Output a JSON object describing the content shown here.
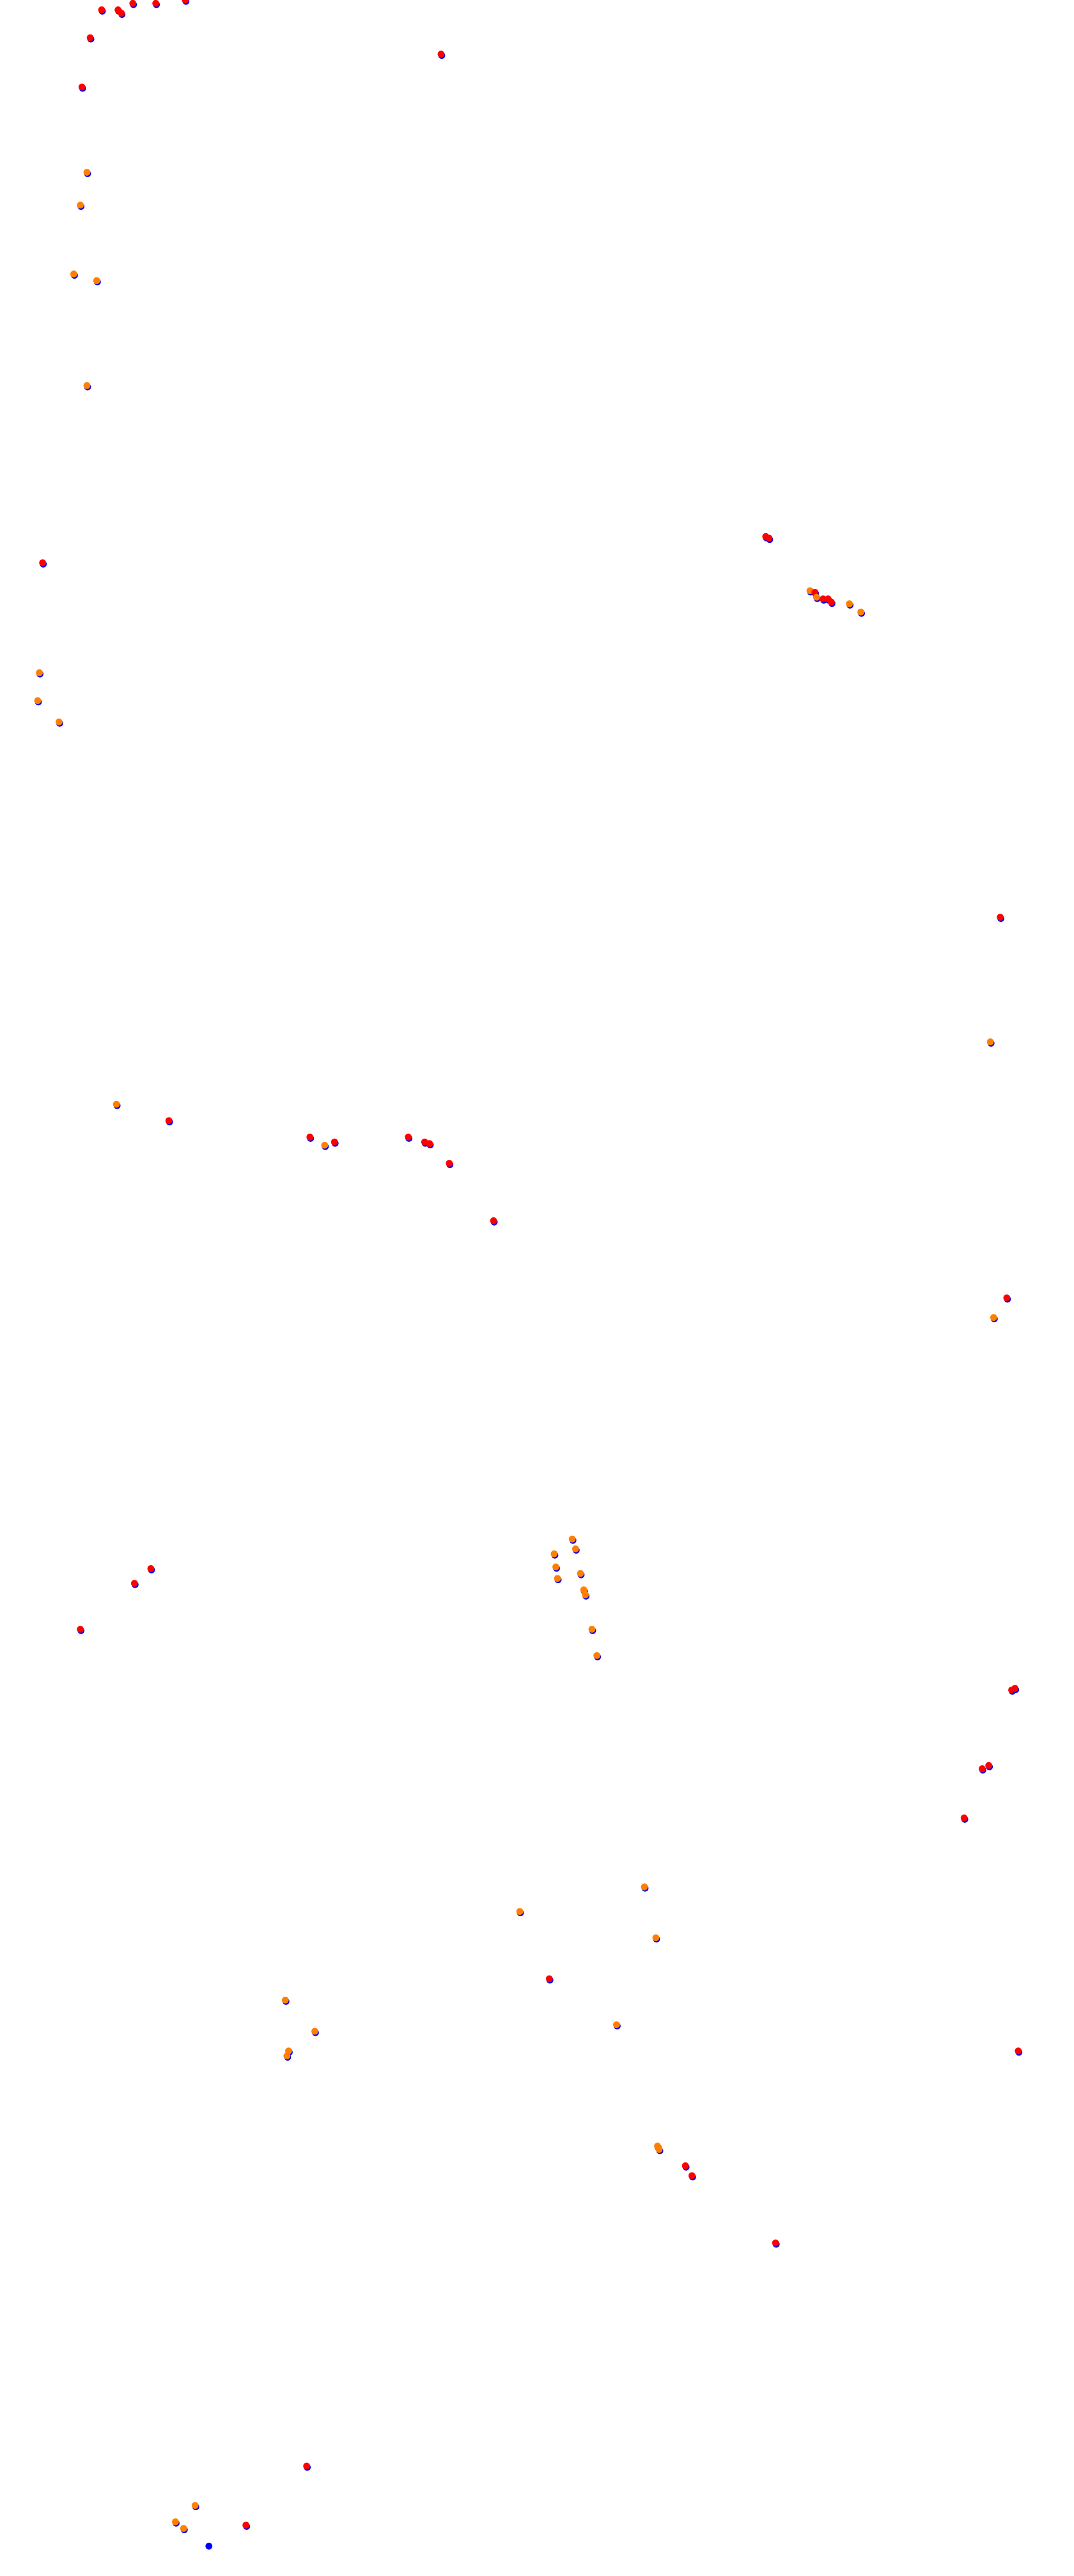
{
  "chart_data": {
    "type": "scatter",
    "title": "",
    "xlabel": "",
    "ylabel": "",
    "grid": false,
    "legend": "none",
    "axes_visible": false,
    "marker_colors": {
      "underlay": "#0000ff",
      "red": "#ff0000",
      "orange": "#ff8000"
    }
  }
}
